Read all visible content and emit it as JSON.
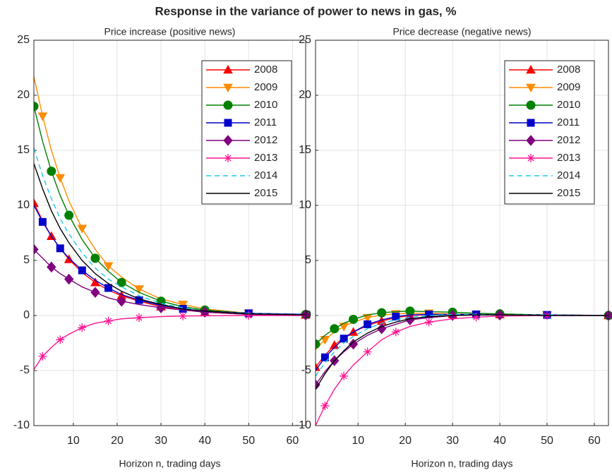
{
  "title": "Response in the variance of power to news in gas, %",
  "chart_data": [
    {
      "type": "line",
      "title": "Price increase (positive news)",
      "x_label": "Horizon n, trading days",
      "x": [
        1,
        3,
        5,
        7,
        9,
        12,
        15,
        18,
        21,
        25,
        30,
        35,
        40,
        50,
        63
      ],
      "xlim": [
        1,
        63
      ],
      "xticks": [
        10,
        20,
        30,
        40,
        50,
        60
      ],
      "ylim": [
        -10,
        25
      ],
      "yticks": [
        -10,
        -5,
        0,
        5,
        10,
        15,
        20,
        25
      ],
      "grid": true,
      "legend": "upper right",
      "series": [
        {
          "name": "2008",
          "color": "#ff0000",
          "marker": "^",
          "linestyle": "-",
          "values": [
            10.2,
            8.6,
            7.2,
            6.1,
            5.1,
            3.9,
            3.0,
            2.3,
            1.8,
            1.3,
            0.8,
            0.5,
            0.3,
            0.1,
            0.05
          ]
        },
        {
          "name": "2009",
          "color": "#ff8c00",
          "marker": "v",
          "linestyle": "-",
          "values": [
            21.7,
            18.1,
            15.0,
            12.5,
            10.4,
            7.9,
            6.0,
            4.5,
            3.5,
            2.4,
            1.5,
            1.0,
            0.6,
            0.2,
            0.1
          ]
        },
        {
          "name": "2010",
          "color": "#008000",
          "marker": "o",
          "linestyle": "-",
          "values": [
            19,
            15.8,
            13.1,
            10.9,
            9.1,
            6.9,
            5.2,
            4.0,
            3.0,
            2.1,
            1.3,
            0.8,
            0.5,
            0.2,
            0.1
          ]
        },
        {
          "name": "2011",
          "color": "#0000cd",
          "marker": "s",
          "linestyle": "-",
          "values": [
            10,
            8.5,
            7.2,
            6.1,
            5.2,
            4.1,
            3.2,
            2.5,
            1.9,
            1.4,
            0.9,
            0.6,
            0.4,
            0.2,
            0.1
          ]
        },
        {
          "name": "2012",
          "color": "#800080",
          "marker": "d",
          "linestyle": "-",
          "values": [
            6,
            5.2,
            4.4,
            3.8,
            3.3,
            2.6,
            2.1,
            1.6,
            1.3,
            1.0,
            0.7,
            0.5,
            0.3,
            0.1,
            0.05
          ]
        },
        {
          "name": "2013",
          "color": "#ff1493",
          "marker": "*",
          "linestyle": "-",
          "values": [
            -4.9,
            -3.7,
            -2.9,
            -2.2,
            -1.7,
            -1.1,
            -0.7,
            -0.5,
            -0.3,
            -0.2,
            -0.1,
            -0.05,
            -0.03,
            0,
            0
          ]
        },
        {
          "name": "2014",
          "color": "#1ec8e6",
          "marker": "none",
          "linestyle": "--",
          "values": [
            15.2,
            12.7,
            10.6,
            8.8,
            7.4,
            5.7,
            4.3,
            3.3,
            2.6,
            1.8,
            1.1,
            0.7,
            0.4,
            0.2,
            0.05
          ]
        },
        {
          "name": "2015",
          "color": "#000000",
          "marker": "none",
          "linestyle": "-",
          "values": [
            13.8,
            11.5,
            9.5,
            7.9,
            6.6,
            5.0,
            3.8,
            2.9,
            2.2,
            1.5,
            1.0,
            0.6,
            0.4,
            0.15,
            0.05
          ]
        }
      ]
    },
    {
      "type": "line",
      "title": "Price decrease (negative news)",
      "x_label": "Horizon n, trading days",
      "x": [
        1,
        3,
        5,
        7,
        9,
        12,
        15,
        18,
        21,
        25,
        30,
        35,
        40,
        50,
        63
      ],
      "xlim": [
        1,
        63
      ],
      "xticks": [
        10,
        20,
        30,
        40,
        50,
        60
      ],
      "ylim": [
        -10,
        25
      ],
      "yticks": [
        -10,
        -5,
        0,
        5,
        10,
        15,
        20,
        25
      ],
      "grid": true,
      "legend": "upper right",
      "series": [
        {
          "name": "2008",
          "color": "#ff0000",
          "marker": "^",
          "linestyle": "-",
          "values": [
            -4.7,
            -3.6,
            -2.7,
            -2.0,
            -1.5,
            -0.9,
            -0.5,
            -0.2,
            0,
            0.1,
            0.1,
            0.1,
            0.1,
            0.05,
            0
          ]
        },
        {
          "name": "2009",
          "color": "#ff8c00",
          "marker": "v",
          "linestyle": "-",
          "values": [
            -3.1,
            -2.2,
            -1.5,
            -1.0,
            -0.6,
            -0.2,
            0.05,
            0.15,
            0.2,
            0.2,
            0.15,
            0.1,
            0.1,
            0.05,
            0
          ]
        },
        {
          "name": "2010",
          "color": "#008000",
          "marker": "o",
          "linestyle": "-",
          "values": [
            -2.6,
            -1.8,
            -1.2,
            -0.7,
            -0.35,
            0.05,
            0.25,
            0.35,
            0.4,
            0.35,
            0.3,
            0.2,
            0.15,
            0.05,
            0
          ]
        },
        {
          "name": "2011",
          "color": "#0000cd",
          "marker": "s",
          "linestyle": "-",
          "values": [
            -5.0,
            -3.8,
            -2.9,
            -2.1,
            -1.5,
            -0.8,
            -0.4,
            -0.1,
            0.05,
            0.1,
            0.1,
            0.1,
            0.05,
            0.05,
            0
          ]
        },
        {
          "name": "2012",
          "color": "#800080",
          "marker": "d",
          "linestyle": "-",
          "values": [
            -6.3,
            -5.1,
            -4.1,
            -3.3,
            -2.6,
            -1.8,
            -1.2,
            -0.8,
            -0.4,
            -0.2,
            0,
            0.05,
            0.05,
            0,
            0
          ]
        },
        {
          "name": "2013",
          "color": "#ff1493",
          "marker": "*",
          "linestyle": "-",
          "values": [
            -10,
            -8.2,
            -6.7,
            -5.5,
            -4.5,
            -3.3,
            -2.2,
            -1.5,
            -1.0,
            -0.6,
            -0.3,
            -0.15,
            -0.05,
            0,
            0
          ]
        },
        {
          "name": "2014",
          "color": "#1ec8e6",
          "marker": "none",
          "linestyle": "--",
          "values": [
            -5.5,
            -4.3,
            -3.3,
            -2.5,
            -1.9,
            -1.2,
            -0.7,
            -0.4,
            -0.15,
            0,
            0.1,
            0.1,
            0.05,
            0.05,
            0
          ]
        },
        {
          "name": "2015",
          "color": "#000000",
          "marker": "none",
          "linestyle": "-",
          "values": [
            -6.7,
            -5.3,
            -4.1,
            -3.2,
            -2.4,
            -1.6,
            -1.0,
            -0.6,
            -0.3,
            -0.1,
            0,
            0.05,
            0.05,
            0,
            0
          ]
        }
      ]
    }
  ]
}
